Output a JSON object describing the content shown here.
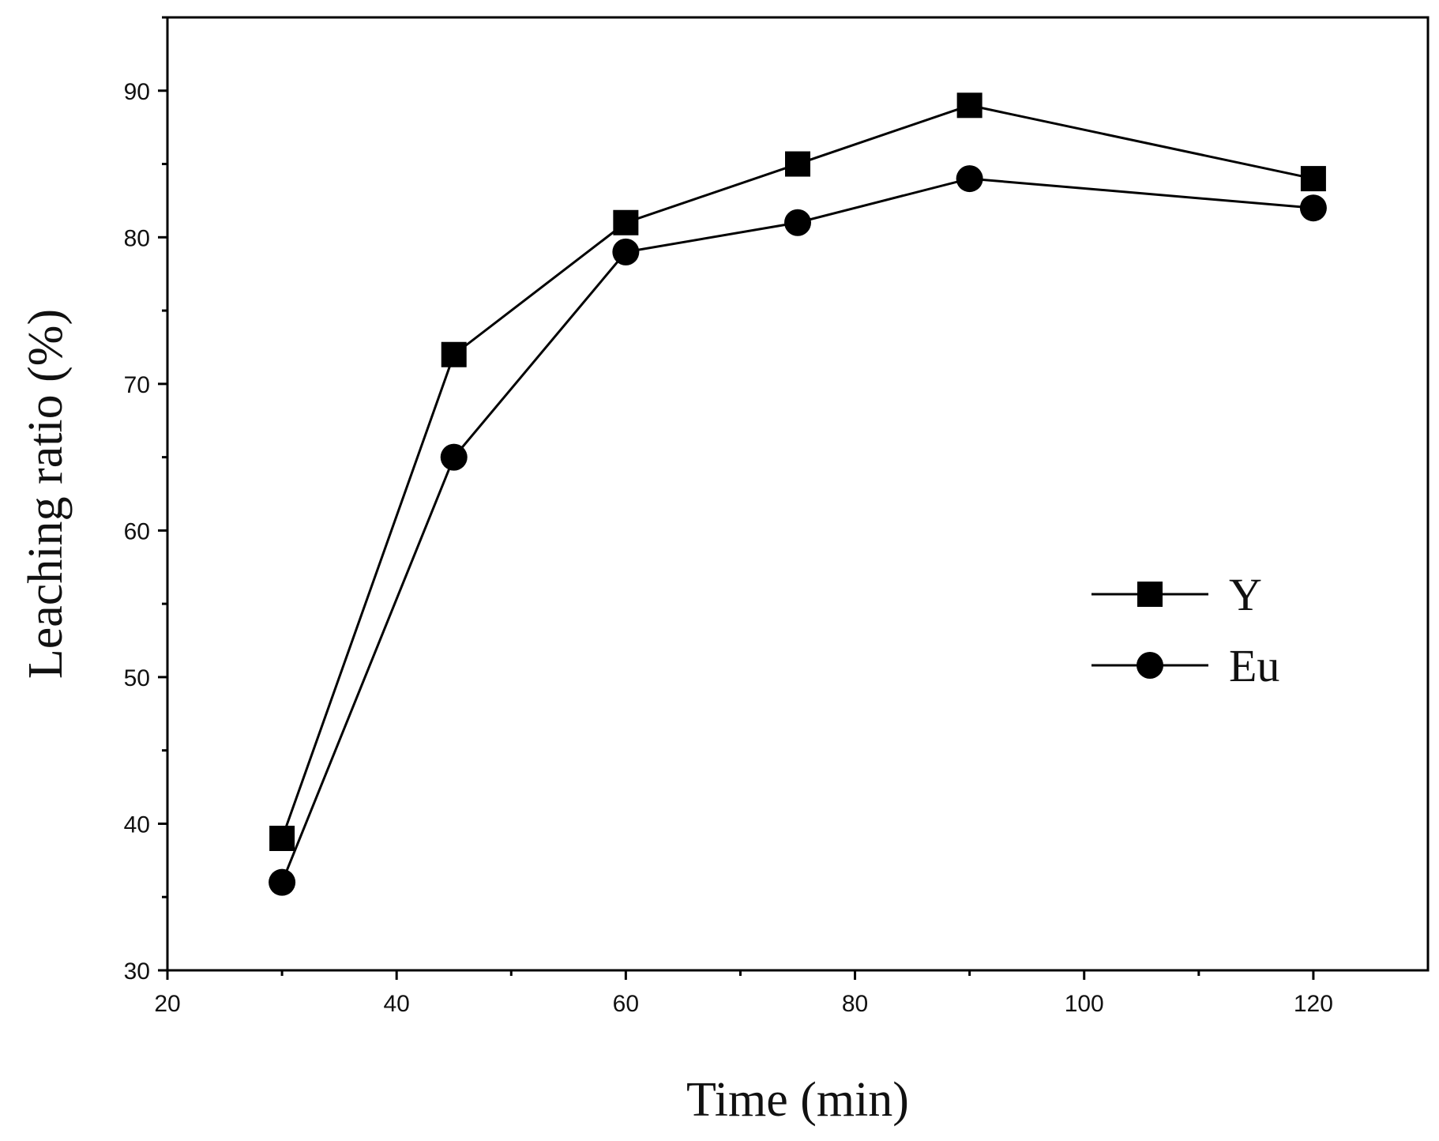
{
  "chart_data": {
    "type": "line",
    "title": "",
    "xlabel": "Time (min)",
    "ylabel": "Leaching ratio (%)",
    "xlim": [
      20,
      130
    ],
    "ylim": [
      30,
      95
    ],
    "xticks": [
      20,
      40,
      60,
      80,
      100,
      120
    ],
    "yticks": [
      30,
      40,
      50,
      60,
      70,
      80,
      90
    ],
    "xticks_labels": [
      "20",
      "40",
      "60",
      "80",
      "100",
      "120"
    ],
    "yticks_labels": [
      "30",
      "40",
      "50",
      "60",
      "70",
      "80",
      "90"
    ],
    "x": [
      30,
      45,
      60,
      75,
      90,
      120
    ],
    "series": [
      {
        "name": "Y",
        "marker": "square",
        "values": [
          39,
          72,
          81,
          85,
          89,
          84
        ]
      },
      {
        "name": "Eu",
        "marker": "circle",
        "values": [
          36,
          65,
          79,
          81,
          84,
          82
        ]
      }
    ],
    "legend_position": "right-middle",
    "grid": false,
    "line_color": "#000000"
  }
}
